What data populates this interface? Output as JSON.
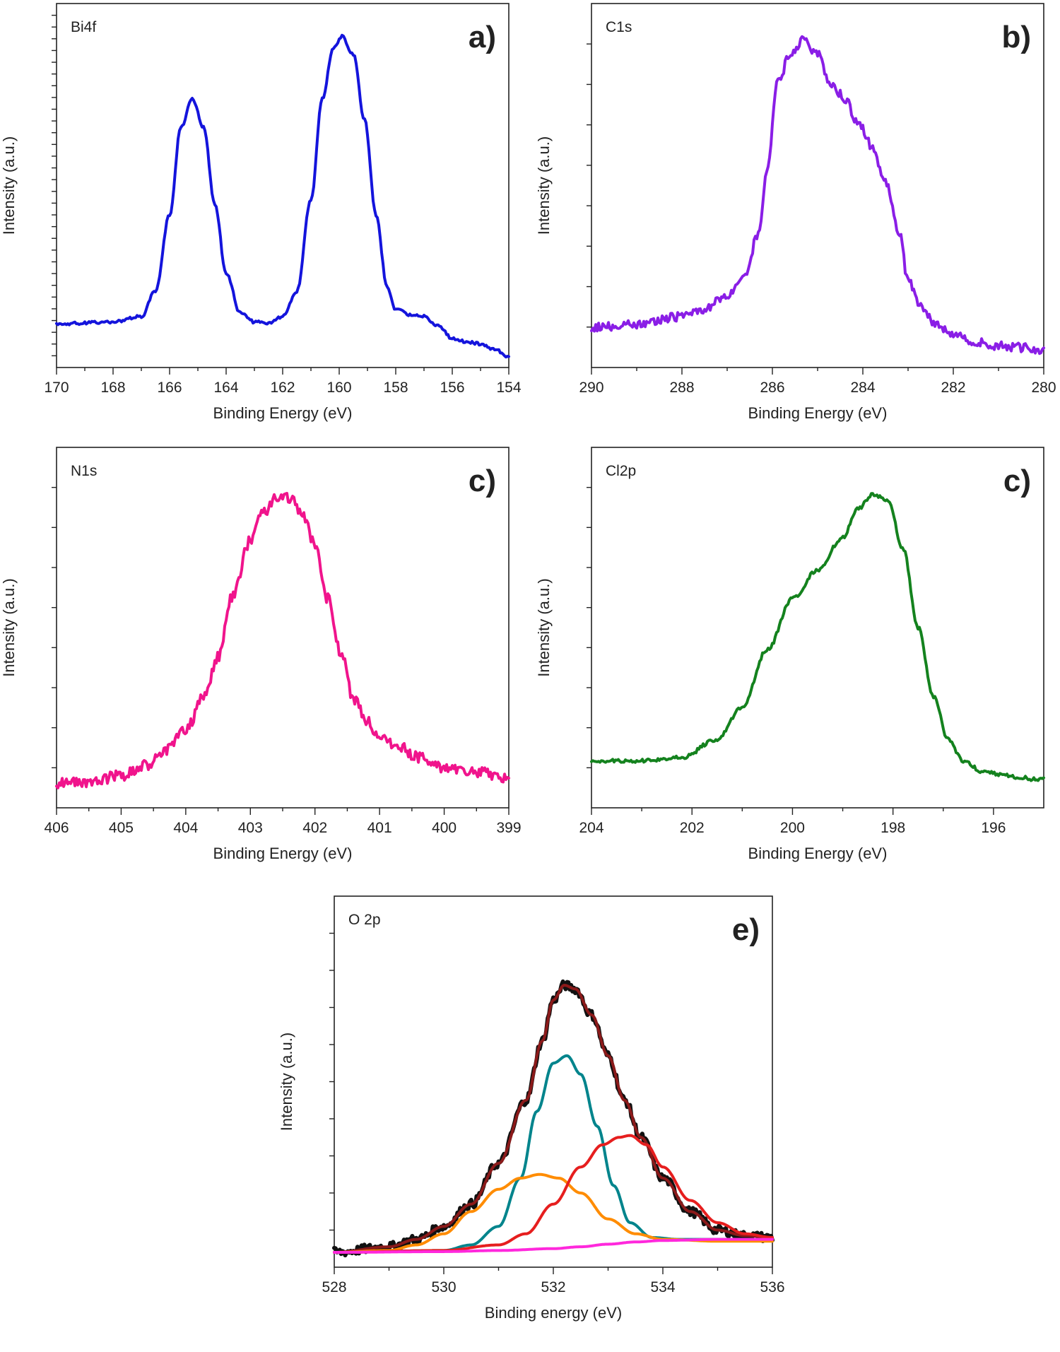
{
  "chart_data": [
    {
      "id": "a",
      "type": "line",
      "panel_label": "a)",
      "core_level": "Bi4f",
      "xlabel": "Binding Energy (eV)",
      "ylabel": "Intensity (a.u.)",
      "xlim": [
        170,
        154
      ],
      "x_reversed": true,
      "ylim": [
        0,
        1
      ],
      "xticks": [
        170,
        168,
        166,
        164,
        162,
        160,
        158,
        156,
        154
      ],
      "y_minor_ticks": 30,
      "noise": 0.004,
      "series": [
        {
          "color": "#1414dc",
          "stroke_width": 4,
          "x": [
            170,
            168,
            167,
            166.5,
            166,
            165.6,
            165.2,
            164.8,
            164.4,
            164,
            163.5,
            163,
            162.5,
            162,
            161.5,
            161,
            160.6,
            160.2,
            159.9,
            159.5,
            159.1,
            158.7,
            158.3,
            158,
            157.5,
            157,
            156.5,
            156,
            155.5,
            155,
            154.5,
            154
          ],
          "y": [
            0.12,
            0.125,
            0.14,
            0.21,
            0.42,
            0.66,
            0.74,
            0.66,
            0.45,
            0.26,
            0.15,
            0.125,
            0.12,
            0.14,
            0.21,
            0.46,
            0.74,
            0.88,
            0.91,
            0.86,
            0.68,
            0.42,
            0.22,
            0.16,
            0.145,
            0.14,
            0.115,
            0.08,
            0.07,
            0.065,
            0.05,
            0.03
          ]
        }
      ]
    },
    {
      "id": "b",
      "type": "line",
      "panel_label": "b)",
      "core_level": "C1s",
      "xlabel": "Binding Energy (eV)",
      "ylabel": "Intensity (a.u.)",
      "xlim": [
        290,
        280
      ],
      "x_reversed": true,
      "ylim": [
        0,
        1
      ],
      "xticks": [
        290,
        288,
        286,
        284,
        282,
        280
      ],
      "y_minor_ticks": 8,
      "noise": 0.012,
      "series": [
        {
          "color": "#8a1ee6",
          "stroke_width": 4,
          "x": [
            290,
            289,
            288,
            287.5,
            287,
            286.6,
            286.3,
            286.1,
            285.9,
            285.6,
            285.3,
            285,
            284.7,
            284.4,
            284.1,
            283.8,
            283.5,
            283.2,
            283,
            282.7,
            282.4,
            282,
            281.5,
            281,
            280.5,
            280
          ],
          "y": [
            0.11,
            0.12,
            0.14,
            0.16,
            0.2,
            0.26,
            0.37,
            0.55,
            0.78,
            0.86,
            0.9,
            0.86,
            0.78,
            0.74,
            0.67,
            0.61,
            0.51,
            0.37,
            0.24,
            0.17,
            0.12,
            0.09,
            0.07,
            0.06,
            0.055,
            0.05
          ]
        }
      ]
    },
    {
      "id": "c",
      "type": "line",
      "panel_label": "c)",
      "core_level": "N1s",
      "xlabel": "Binding Energy (eV)",
      "ylabel": "Intensity (a.u.)",
      "xlim": [
        406,
        399
      ],
      "x_reversed": true,
      "ylim": [
        0,
        1
      ],
      "xticks": [
        406,
        405,
        404,
        403,
        402,
        401,
        400,
        399
      ],
      "y_minor_ticks": 8,
      "noise": 0.015,
      "series": [
        {
          "color": "#f0148c",
          "stroke_width": 4,
          "x": [
            406,
            405.5,
            405,
            404.6,
            404.3,
            404,
            403.7,
            403.5,
            403.3,
            403,
            402.8,
            402.6,
            402.4,
            402.2,
            402,
            401.8,
            401.6,
            401.4,
            401.2,
            401,
            400.7,
            400.4,
            400,
            399.5,
            399
          ],
          "y": [
            0.07,
            0.07,
            0.09,
            0.12,
            0.16,
            0.22,
            0.31,
            0.42,
            0.58,
            0.74,
            0.82,
            0.86,
            0.86,
            0.82,
            0.73,
            0.58,
            0.43,
            0.3,
            0.24,
            0.2,
            0.17,
            0.14,
            0.11,
            0.1,
            0.08
          ]
        }
      ]
    },
    {
      "id": "d",
      "type": "line",
      "panel_label": "c)",
      "core_level": "Cl2p",
      "xlabel": "Binding Energy (eV)",
      "ylabel": "Intensity (a.u.)",
      "xlim": [
        204,
        195
      ],
      "x_reversed": true,
      "ylim": [
        0,
        1
      ],
      "xticks": [
        204,
        202,
        200,
        198,
        196
      ],
      "y_minor_ticks": 8,
      "noise": 0.005,
      "series": [
        {
          "color": "#14821e",
          "stroke_width": 4,
          "x": [
            204,
            203,
            202.2,
            201.5,
            201,
            200.5,
            200,
            199.5,
            199,
            198.7,
            198.4,
            198.1,
            197.8,
            197.5,
            197.2,
            196.9,
            196.6,
            196.2,
            195.8,
            195.5,
            195.2
          ],
          "y": [
            0.13,
            0.13,
            0.14,
            0.19,
            0.28,
            0.44,
            0.58,
            0.66,
            0.75,
            0.83,
            0.87,
            0.85,
            0.72,
            0.5,
            0.31,
            0.19,
            0.13,
            0.1,
            0.09,
            0.085,
            0.08
          ]
        }
      ]
    },
    {
      "id": "e",
      "type": "line",
      "panel_label": "e)",
      "core_level": "O 2p",
      "xlabel": "Binding energy (eV)",
      "ylabel": "Intensity (a.u.)",
      "xlim": [
        528,
        536
      ],
      "x_reversed": false,
      "ylim": [
        0,
        1
      ],
      "xticks": [
        528,
        530,
        532,
        534,
        536
      ],
      "y_minor_ticks": 9,
      "noise": 0,
      "series": [
        {
          "color": "#111111",
          "stroke_width": 6,
          "x": [
            528,
            529,
            529.5,
            530,
            530.5,
            531,
            531.5,
            531.8,
            532,
            532.2,
            532.4,
            532.7,
            533,
            533.3,
            533.6,
            534,
            534.5,
            535,
            535.5,
            536
          ],
          "y": [
            0.04,
            0.055,
            0.075,
            0.11,
            0.17,
            0.28,
            0.45,
            0.61,
            0.72,
            0.76,
            0.75,
            0.68,
            0.57,
            0.45,
            0.35,
            0.24,
            0.15,
            0.1,
            0.085,
            0.08
          ],
          "jitter": 0.012
        },
        {
          "color": "#8b1a1a",
          "stroke_width": 4,
          "x": [
            528,
            529,
            529.5,
            530,
            530.5,
            531,
            531.5,
            531.8,
            532,
            532.2,
            532.4,
            532.7,
            533,
            533.3,
            533.6,
            534,
            534.5,
            535,
            535.5,
            536
          ],
          "y": [
            0.04,
            0.055,
            0.075,
            0.11,
            0.17,
            0.28,
            0.45,
            0.61,
            0.72,
            0.76,
            0.75,
            0.68,
            0.57,
            0.45,
            0.35,
            0.24,
            0.15,
            0.1,
            0.085,
            0.08
          ]
        },
        {
          "color": "#00848c",
          "stroke_width": 4,
          "x": [
            528,
            530,
            530.5,
            531,
            531.4,
            531.7,
            532,
            532.25,
            532.5,
            532.8,
            533.1,
            533.4,
            533.8,
            534.3,
            535,
            536
          ],
          "y": [
            0.04,
            0.045,
            0.06,
            0.11,
            0.24,
            0.42,
            0.55,
            0.57,
            0.52,
            0.38,
            0.22,
            0.12,
            0.08,
            0.075,
            0.075,
            0.075
          ]
        },
        {
          "color": "#ff8c00",
          "stroke_width": 4,
          "x": [
            528,
            529,
            529.5,
            530,
            530.5,
            531,
            531.4,
            531.75,
            532.1,
            532.5,
            533,
            533.5,
            534,
            535,
            536
          ],
          "y": [
            0.04,
            0.045,
            0.06,
            0.09,
            0.15,
            0.21,
            0.24,
            0.25,
            0.24,
            0.2,
            0.13,
            0.09,
            0.075,
            0.07,
            0.07
          ]
        },
        {
          "color": "#e61e1e",
          "stroke_width": 4,
          "x": [
            528,
            530,
            531,
            531.5,
            532,
            532.5,
            532.9,
            533.2,
            533.4,
            533.7,
            534,
            534.5,
            535,
            535.5,
            536
          ],
          "y": [
            0.04,
            0.045,
            0.06,
            0.09,
            0.17,
            0.27,
            0.33,
            0.35,
            0.355,
            0.33,
            0.27,
            0.18,
            0.12,
            0.09,
            0.08
          ]
        },
        {
          "color": "#ff28dc",
          "stroke_width": 4,
          "x": [
            528,
            530,
            531,
            532,
            532.5,
            533,
            533.5,
            534,
            535,
            536
          ],
          "y": [
            0.04,
            0.042,
            0.045,
            0.05,
            0.055,
            0.062,
            0.068,
            0.072,
            0.075,
            0.075
          ]
        }
      ]
    }
  ]
}
